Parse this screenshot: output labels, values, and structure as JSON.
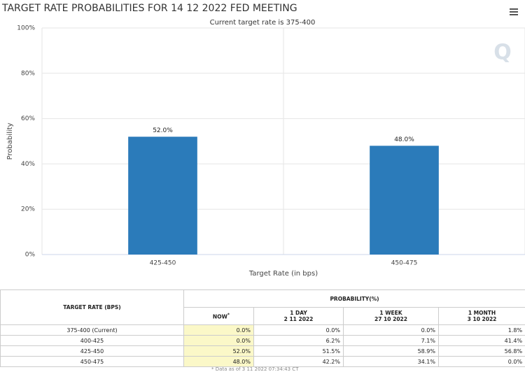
{
  "chart_data": {
    "type": "bar",
    "title": "TARGET RATE PROBABILITIES FOR 14 12 2022 FED MEETING",
    "subtitle": "Current target rate is 375-400",
    "x_label": "Target Rate (in bps)",
    "y_label": "Probability",
    "categories": [
      "425-450",
      "450-475"
    ],
    "values": [
      52.0,
      48.0
    ],
    "value_labels": [
      "52.0%",
      "48.0%"
    ],
    "color": "#2b7bba",
    "ylim": [
      0,
      100
    ],
    "yticks": [
      {
        "value": 0,
        "label": "0%"
      },
      {
        "value": 20,
        "label": "20%"
      },
      {
        "value": 40,
        "label": "40%"
      },
      {
        "value": 60,
        "label": "60%"
      },
      {
        "value": 80,
        "label": "80%"
      },
      {
        "value": 100,
        "label": "100%"
      }
    ],
    "grid": true
  },
  "table": {
    "header": {
      "rate": "TARGET RATE (BPS)",
      "group": "PROBABILITY(%)",
      "columns": [
        {
          "title": "NOW",
          "note": "*"
        },
        {
          "title": "1 DAY",
          "date": "2 11 2022"
        },
        {
          "title": "1 WEEK",
          "date": "27 10 2022"
        },
        {
          "title": "1 MONTH",
          "date": "3 10 2022"
        }
      ]
    },
    "rows": [
      [
        "375-400 (Current)",
        "0.0%",
        "0.0%",
        "0.0%",
        "1.8%"
      ],
      [
        "400-425",
        "0.0%",
        "6.2%",
        "7.1%",
        "41.4%"
      ],
      [
        "425-450",
        "52.0%",
        "51.5%",
        "58.9%",
        "56.8%"
      ],
      [
        "450-475",
        "48.0%",
        "42.2%",
        "34.1%",
        "0.0%"
      ]
    ],
    "footnote": "* Data as of 3 11 2022 07:34:43 CT"
  }
}
